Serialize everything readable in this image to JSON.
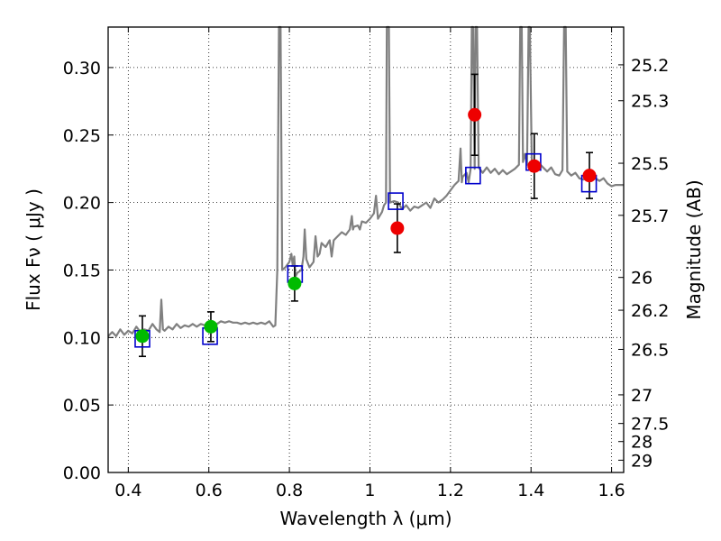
{
  "chart_data": {
    "type": "scatter",
    "xlabel": "Wavelength  λ (μm)",
    "ylabel": "Flux  Fν  ( μJy )",
    "y2label": "Magnitude (AB)",
    "xlim": [
      0.35,
      1.63
    ],
    "ylim": [
      0.0,
      0.33
    ],
    "grid": true,
    "x_ticks": [
      0.4,
      0.6,
      0.8,
      1.0,
      1.2,
      1.4,
      1.6
    ],
    "x_tick_labels": [
      "0.4",
      "0.6",
      "0.8",
      "1",
      "1.2",
      "1.4",
      "1.6"
    ],
    "y_ticks": [
      0.0,
      0.05,
      0.1,
      0.15,
      0.2,
      0.25,
      0.3
    ],
    "y_tick_labels": [
      "0.00",
      "0.05",
      "0.10",
      "0.15",
      "0.20",
      "0.25",
      "0.30"
    ],
    "mag_ticks": [
      {
        "label": "25.2",
        "flux": 0.302
      },
      {
        "label": "25.3",
        "flux": 0.2754
      },
      {
        "label": "25.5",
        "flux": 0.2291
      },
      {
        "label": "25.7",
        "flux": 0.1905
      },
      {
        "label": "26",
        "flux": 0.1445
      },
      {
        "label": "26.2",
        "flux": 0.1202
      },
      {
        "label": "26.5",
        "flux": 0.0912
      },
      {
        "label": "27",
        "flux": 0.0575
      },
      {
        "label": "27.5",
        "flux": 0.0363
      },
      {
        "label": "28",
        "flux": 0.0229
      },
      {
        "label": "29",
        "flux": 0.0091
      }
    ],
    "series": [
      {
        "color": "#808080",
        "points": [
          [
            0.35,
            0.101
          ],
          [
            0.36,
            0.104
          ],
          [
            0.37,
            0.101
          ],
          [
            0.38,
            0.106
          ],
          [
            0.39,
            0.102
          ],
          [
            0.4,
            0.105
          ],
          [
            0.41,
            0.103
          ],
          [
            0.42,
            0.108
          ],
          [
            0.43,
            0.104
          ],
          [
            0.44,
            0.106
          ],
          [
            0.45,
            0.105
          ],
          [
            0.46,
            0.11
          ],
          [
            0.47,
            0.106
          ],
          [
            0.478,
            0.104
          ],
          [
            0.482,
            0.128
          ],
          [
            0.486,
            0.106
          ],
          [
            0.49,
            0.105
          ],
          [
            0.5,
            0.108
          ],
          [
            0.51,
            0.106
          ],
          [
            0.52,
            0.11
          ],
          [
            0.53,
            0.107
          ],
          [
            0.54,
            0.109
          ],
          [
            0.55,
            0.108
          ],
          [
            0.56,
            0.11
          ],
          [
            0.57,
            0.108
          ],
          [
            0.58,
            0.11
          ],
          [
            0.59,
            0.109
          ],
          [
            0.6,
            0.11
          ],
          [
            0.61,
            0.111
          ],
          [
            0.62,
            0.11
          ],
          [
            0.63,
            0.112
          ],
          [
            0.64,
            0.111
          ],
          [
            0.65,
            0.112
          ],
          [
            0.66,
            0.111
          ],
          [
            0.67,
            0.111
          ],
          [
            0.68,
            0.11
          ],
          [
            0.69,
            0.111
          ],
          [
            0.7,
            0.11
          ],
          [
            0.71,
            0.111
          ],
          [
            0.72,
            0.11
          ],
          [
            0.73,
            0.111
          ],
          [
            0.74,
            0.11
          ],
          [
            0.75,
            0.112
          ],
          [
            0.76,
            0.108
          ],
          [
            0.765,
            0.109
          ],
          [
            0.77,
            0.15
          ],
          [
            0.774,
            0.33
          ],
          [
            0.778,
            0.33
          ],
          [
            0.782,
            0.15
          ],
          [
            0.79,
            0.152
          ],
          [
            0.8,
            0.156
          ],
          [
            0.805,
            0.162
          ],
          [
            0.808,
            0.154
          ],
          [
            0.812,
            0.16
          ],
          [
            0.815,
            0.145
          ],
          [
            0.82,
            0.148
          ],
          [
            0.83,
            0.15
          ],
          [
            0.835,
            0.16
          ],
          [
            0.838,
            0.18
          ],
          [
            0.842,
            0.158
          ],
          [
            0.85,
            0.152
          ],
          [
            0.86,
            0.156
          ],
          [
            0.865,
            0.175
          ],
          [
            0.87,
            0.16
          ],
          [
            0.875,
            0.162
          ],
          [
            0.88,
            0.17
          ],
          [
            0.89,
            0.167
          ],
          [
            0.9,
            0.172
          ],
          [
            0.905,
            0.16
          ],
          [
            0.91,
            0.172
          ],
          [
            0.92,
            0.175
          ],
          [
            0.93,
            0.178
          ],
          [
            0.94,
            0.176
          ],
          [
            0.95,
            0.18
          ],
          [
            0.955,
            0.19
          ],
          [
            0.958,
            0.18
          ],
          [
            0.96,
            0.182
          ],
          [
            0.97,
            0.183
          ],
          [
            0.975,
            0.18
          ],
          [
            0.98,
            0.186
          ],
          [
            0.99,
            0.185
          ],
          [
            1.0,
            0.188
          ],
          [
            1.01,
            0.192
          ],
          [
            1.015,
            0.205
          ],
          [
            1.02,
            0.188
          ],
          [
            1.03,
            0.193
          ],
          [
            1.035,
            0.198
          ],
          [
            1.04,
            0.2
          ],
          [
            1.042,
            0.33
          ],
          [
            1.047,
            0.33
          ],
          [
            1.05,
            0.2
          ],
          [
            1.06,
            0.201
          ],
          [
            1.07,
            0.2
          ],
          [
            1.08,
            0.195
          ],
          [
            1.09,
            0.198
          ],
          [
            1.1,
            0.194
          ],
          [
            1.11,
            0.197
          ],
          [
            1.12,
            0.196
          ],
          [
            1.13,
            0.198
          ],
          [
            1.14,
            0.2
          ],
          [
            1.15,
            0.196
          ],
          [
            1.16,
            0.203
          ],
          [
            1.17,
            0.2
          ],
          [
            1.18,
            0.202
          ],
          [
            1.19,
            0.205
          ],
          [
            1.2,
            0.209
          ],
          [
            1.21,
            0.213
          ],
          [
            1.22,
            0.216
          ],
          [
            1.225,
            0.24
          ],
          [
            1.228,
            0.215
          ],
          [
            1.23,
            0.219
          ],
          [
            1.24,
            0.222
          ],
          [
            1.245,
            0.215
          ],
          [
            1.25,
            0.225
          ],
          [
            1.253,
            0.33
          ],
          [
            1.256,
            0.33
          ],
          [
            1.26,
            0.225
          ],
          [
            1.262,
            0.33
          ],
          [
            1.266,
            0.33
          ],
          [
            1.27,
            0.226
          ],
          [
            1.28,
            0.222
          ],
          [
            1.29,
            0.226
          ],
          [
            1.3,
            0.222
          ],
          [
            1.31,
            0.225
          ],
          [
            1.32,
            0.221
          ],
          [
            1.33,
            0.224
          ],
          [
            1.34,
            0.221
          ],
          [
            1.35,
            0.223
          ],
          [
            1.36,
            0.225
          ],
          [
            1.37,
            0.228
          ],
          [
            1.373,
            0.33
          ],
          [
            1.377,
            0.33
          ],
          [
            1.38,
            0.23
          ],
          [
            1.385,
            0.236
          ],
          [
            1.39,
            0.228
          ],
          [
            1.394,
            0.33
          ],
          [
            1.397,
            0.33
          ],
          [
            1.402,
            0.228
          ],
          [
            1.41,
            0.227
          ],
          [
            1.42,
            0.229
          ],
          [
            1.43,
            0.226
          ],
          [
            1.44,
            0.223
          ],
          [
            1.45,
            0.226
          ],
          [
            1.46,
            0.221
          ],
          [
            1.47,
            0.22
          ],
          [
            1.478,
            0.224
          ],
          [
            1.482,
            0.33
          ],
          [
            1.486,
            0.33
          ],
          [
            1.49,
            0.223
          ],
          [
            1.5,
            0.22
          ],
          [
            1.51,
            0.222
          ],
          [
            1.52,
            0.218
          ],
          [
            1.53,
            0.217
          ],
          [
            1.54,
            0.219
          ],
          [
            1.55,
            0.216
          ],
          [
            1.56,
            0.218
          ],
          [
            1.57,
            0.216
          ],
          [
            1.58,
            0.218
          ],
          [
            1.59,
            0.214
          ],
          [
            1.6,
            0.212
          ],
          [
            1.61,
            0.213
          ],
          [
            1.62,
            0.213
          ],
          [
            1.63,
            0.213
          ]
        ]
      },
      {
        "color": "#0000cc",
        "marker": "open-square",
        "points": [
          [
            0.435,
            0.099
          ],
          [
            0.603,
            0.101
          ],
          [
            0.814,
            0.147
          ],
          [
            1.064,
            0.201
          ],
          [
            1.256,
            0.22
          ],
          [
            1.406,
            0.23
          ],
          [
            1.544,
            0.214
          ]
        ]
      },
      {
        "color": "#00bb00",
        "marker": "filled-circle",
        "points": [
          {
            "x": 0.435,
            "y": 0.101,
            "err": 0.015
          },
          {
            "x": 0.605,
            "y": 0.108,
            "err": 0.011
          },
          {
            "x": 0.813,
            "y": 0.14,
            "err": 0.013
          }
        ]
      },
      {
        "color": "#ee0000",
        "marker": "filled-circle",
        "points": [
          {
            "x": 1.068,
            "y": 0.181,
            "err": 0.018
          },
          {
            "x": 1.26,
            "y": 0.265,
            "err": 0.03
          },
          {
            "x": 1.408,
            "y": 0.227,
            "err": 0.024
          },
          {
            "x": 1.545,
            "y": 0.22,
            "err": 0.017
          }
        ]
      }
    ]
  }
}
